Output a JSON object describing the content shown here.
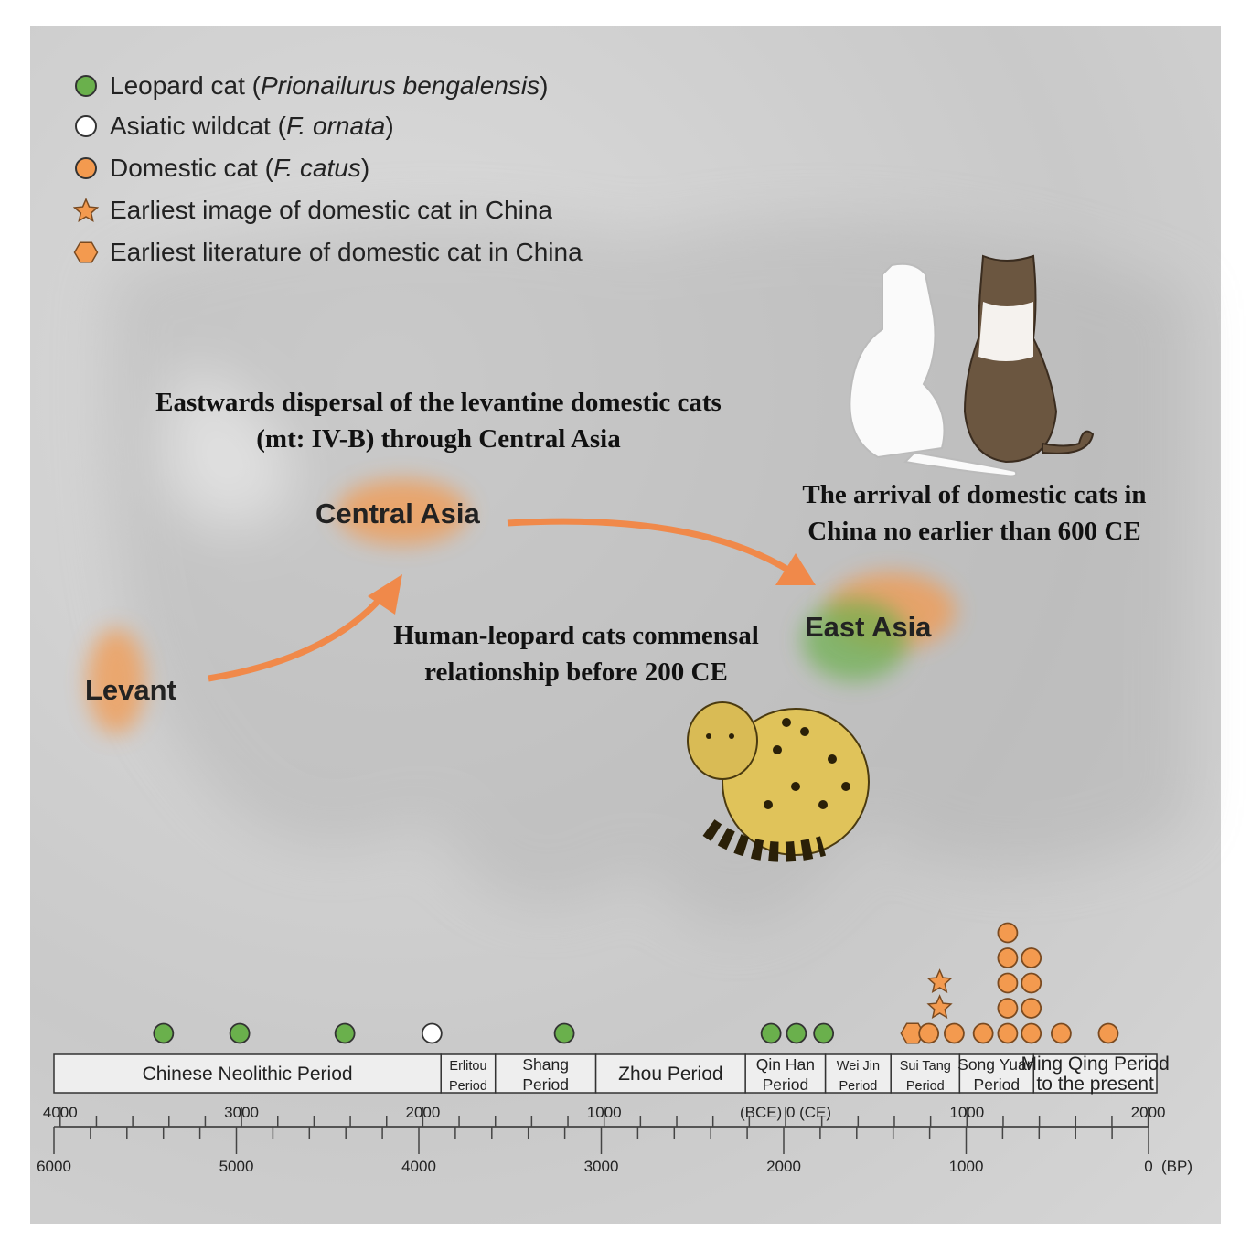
{
  "legend": [
    {
      "symbol": "filled-circle",
      "color": "#6ab04c",
      "label_plain": "Leopard cat (",
      "label_italic": "Prionailurus bengalensis",
      "label_end": ")"
    },
    {
      "symbol": "open-circle",
      "color": "#ffffff",
      "label_plain": "Asiatic wildcat (",
      "label_italic": "F. ornata",
      "label_end": ")"
    },
    {
      "symbol": "filled-circle",
      "color": "#f39a4f",
      "label_plain": "Domestic cat (",
      "label_italic": "F. catus",
      "label_end": ")"
    },
    {
      "symbol": "star",
      "color": "#f39a4f",
      "label_plain": "Earliest image of domestic cat in China",
      "label_italic": "",
      "label_end": ""
    },
    {
      "symbol": "hexagon",
      "color": "#f39a4f",
      "label_plain": "Earliest literature of domestic cat in China",
      "label_italic": "",
      "label_end": ""
    }
  ],
  "annotations": {
    "dispersal": [
      "Eastwards dispersal of the levantine domestic cats",
      "(mt: IV-B) through Central Asia"
    ],
    "arrival": [
      "The arrival of domestic cats in",
      "China no earlier than 600 CE"
    ],
    "commensal": [
      "Human-leopard cats commensal",
      "relationship before 200 CE"
    ]
  },
  "regions": {
    "levant": "Levant",
    "central_asia": "Central Asia",
    "east_asia": "East Asia"
  },
  "colors": {
    "leopard": "#6ab04c",
    "domestic": "#f39a4f",
    "arrow": "#f0894a",
    "outline": "#333333"
  },
  "timeline": {
    "periods": [
      {
        "label": [
          "Chinese Neolithic Period"
        ],
        "start": -4000,
        "end": -1900
      },
      {
        "label": [
          "Erlitou",
          "Period"
        ],
        "start": -1900,
        "end": -1600
      },
      {
        "label": [
          "Shang",
          "Period"
        ],
        "start": -1600,
        "end": -1046
      },
      {
        "label": [
          "Zhou Period"
        ],
        "start": -1046,
        "end": -221
      },
      {
        "label": [
          "Qin Han",
          "Period"
        ],
        "start": -221,
        "end": 220
      },
      {
        "label": [
          "Wei Jin",
          "Period"
        ],
        "start": 220,
        "end": 581
      },
      {
        "label": [
          "Sui Tang",
          "Period"
        ],
        "start": 581,
        "end": 960
      },
      {
        "label": [
          "Song Yuan",
          "Period"
        ],
        "start": 960,
        "end": 1368
      },
      {
        "label": [
          "Ming Qing Period",
          "to the present"
        ],
        "start": 1368,
        "end": 2000
      }
    ],
    "calendar_axis": {
      "range": [
        -4000,
        2000
      ],
      "tick_step": 200,
      "labels": [
        {
          "value": -4000,
          "text": "4000"
        },
        {
          "value": -3000,
          "text": "3000"
        },
        {
          "value": -2000,
          "text": "2000"
        },
        {
          "value": -1000,
          "text": "1000"
        },
        {
          "value": 0,
          "text": "(BCE) 0 (CE)"
        },
        {
          "value": 1000,
          "text": "1000"
        },
        {
          "value": 2000,
          "text": "2000"
        }
      ]
    },
    "bp_axis": {
      "range": [
        6000,
        0
      ],
      "tick_step": 200,
      "labels": [
        {
          "value": 6000,
          "text": "6000"
        },
        {
          "value": 5000,
          "text": "5000"
        },
        {
          "value": 4000,
          "text": "4000"
        },
        {
          "value": 3000,
          "text": "3000"
        },
        {
          "value": 2000,
          "text": "2000"
        },
        {
          "value": 1000,
          "text": "1000"
        },
        {
          "value": 0,
          "text": "0"
        }
      ],
      "unit": "(BP)"
    },
    "records": [
      {
        "type": "leopard",
        "year": -3430,
        "stack": 1
      },
      {
        "type": "leopard",
        "year": -3010,
        "stack": 1
      },
      {
        "type": "leopard",
        "year": -2430,
        "stack": 1
      },
      {
        "type": "wildcat",
        "year": -1950,
        "stack": 1
      },
      {
        "type": "leopard",
        "year": -1220,
        "stack": 1
      },
      {
        "type": "leopard",
        "year": -80,
        "stack": 1
      },
      {
        "type": "leopard",
        "year": 60,
        "stack": 1
      },
      {
        "type": "leopard",
        "year": 210,
        "stack": 1
      },
      {
        "type": "literature",
        "year": 700,
        "stack": 1
      },
      {
        "type": "domestic",
        "year": 790,
        "stack": 1
      },
      {
        "type": "image",
        "year": 850,
        "stack": 2
      },
      {
        "type": "domestic",
        "year": 930,
        "stack": 1
      },
      {
        "type": "domestic",
        "year": 1090,
        "stack": 1
      },
      {
        "type": "domestic",
        "year": 1225,
        "stack": 5
      },
      {
        "type": "domestic",
        "year": 1355,
        "stack": 4
      },
      {
        "type": "domestic",
        "year": 1520,
        "stack": 1
      },
      {
        "type": "domestic",
        "year": 1780,
        "stack": 1
      }
    ]
  }
}
